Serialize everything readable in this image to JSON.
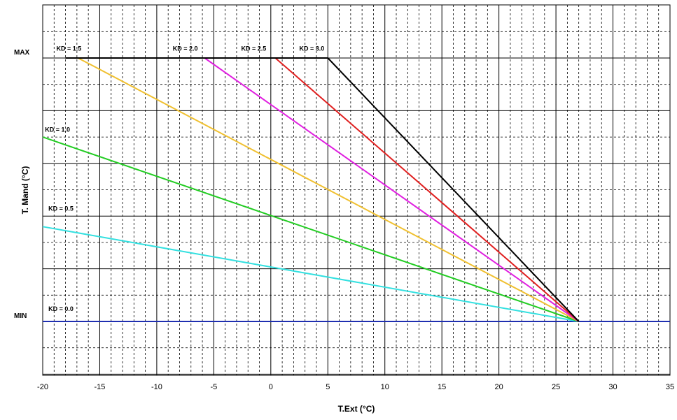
{
  "chart_data": {
    "type": "line",
    "title": "",
    "xlabel": "T.Ext (°C)",
    "ylabel": "T. Mand (°C)",
    "xlim": [
      -20,
      35
    ],
    "x_ticks": [
      "-20",
      "-15",
      "-10",
      "-5",
      "0",
      "5",
      "10",
      "15",
      "20",
      "25",
      "30",
      "35"
    ],
    "y_levels": [
      {
        "label": "MAX",
        "value": 1
      },
      {
        "label": "MIN",
        "value": 0
      }
    ],
    "grid": true,
    "legend": "none",
    "series": [
      {
        "name": "KD = 0.0",
        "color": "#1f2fb0",
        "points": [
          [
            -20,
            0
          ],
          [
            35,
            0
          ]
        ],
        "label_at": [
          -19.5,
          0.04
        ]
      },
      {
        "name": "KD = 0.5",
        "color": "#33e0e0",
        "points": [
          [
            -20,
            0.36
          ],
          [
            27,
            0
          ]
        ],
        "label_at": [
          -19.5,
          0.42
        ]
      },
      {
        "name": "KD = 1.0",
        "color": "#22cc22",
        "points": [
          [
            -20,
            0.7
          ],
          [
            27,
            0
          ]
        ],
        "label_at": [
          -19.8,
          0.72
        ]
      },
      {
        "name": "KD = 1.5",
        "color": "#f0c030",
        "points": [
          [
            -16.9,
            1
          ],
          [
            27,
            0
          ]
        ],
        "label_at": [
          -18.8,
          1.028
        ]
      },
      {
        "name": "KD = 2.0",
        "color": "#e020e0",
        "points": [
          [
            -5.8,
            1
          ],
          [
            27,
            0
          ]
        ],
        "label_at": [
          -8.6,
          1.028
        ]
      },
      {
        "name": "KD = 2.5",
        "color": "#e02020",
        "points": [
          [
            0.4,
            1
          ],
          [
            27,
            0
          ]
        ],
        "label_at": [
          -2.6,
          1.028
        ]
      },
      {
        "name": "KD = 3.0",
        "color": "#000000",
        "points": [
          [
            5,
            1
          ],
          [
            27,
            0
          ]
        ],
        "label_at": [
          2.5,
          1.028
        ]
      }
    ]
  }
}
